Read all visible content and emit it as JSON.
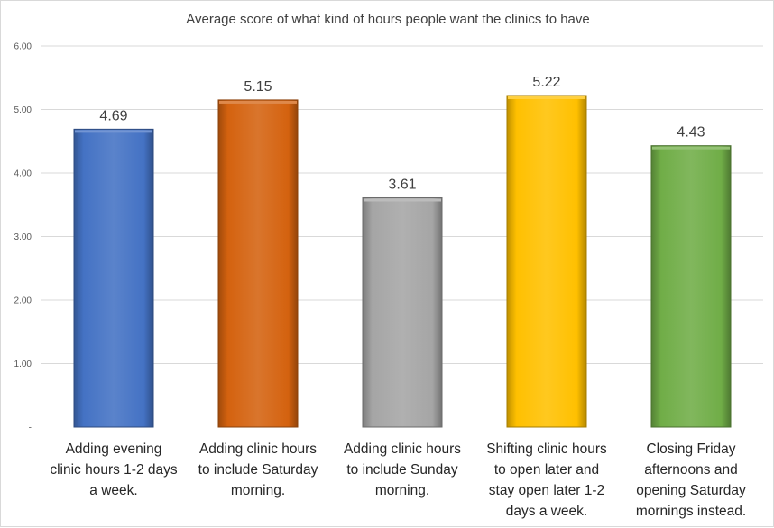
{
  "chart_data": {
    "type": "bar",
    "title": "Average score of what kind of hours people want the clinics to have",
    "categories": [
      "Adding evening clinic hours 1-2 days a week.",
      "Adding clinic hours to include Saturday morning.",
      "Adding clinic hours to include Sunday morning.",
      "Shifting clinic hours to open later and stay open later 1-2 days a week.",
      "Closing Friday afternoons and opening Saturday mornings instead."
    ],
    "category_lines": [
      [
        "Adding evening",
        "clinic hours 1-2 days",
        "a week."
      ],
      [
        "Adding clinic hours",
        "to include Saturday",
        "morning."
      ],
      [
        "Adding clinic hours",
        "to include Sunday",
        "morning."
      ],
      [
        "Shifting clinic hours",
        "to open later and",
        "stay open later 1-2",
        "days a week."
      ],
      [
        "Closing Friday",
        "afternoons and",
        "opening Saturday",
        "mornings instead."
      ]
    ],
    "values": [
      4.69,
      5.15,
      3.61,
      5.22,
      4.43
    ],
    "data_labels": [
      "4.69",
      "5.15",
      "3.61",
      "5.22",
      "4.43"
    ],
    "colors": [
      "#4472C4",
      "#D4620F",
      "#A5A5A5",
      "#FFC000",
      "#70AD47"
    ],
    "ylim": [
      0,
      6
    ],
    "yticks": [
      0,
      1,
      2,
      3,
      4,
      5,
      6
    ],
    "ytick_labels": [
      "-",
      "1.00",
      "2.00",
      "3.00",
      "4.00",
      "5.00",
      "6.00"
    ],
    "grid": true,
    "legend": "none"
  }
}
